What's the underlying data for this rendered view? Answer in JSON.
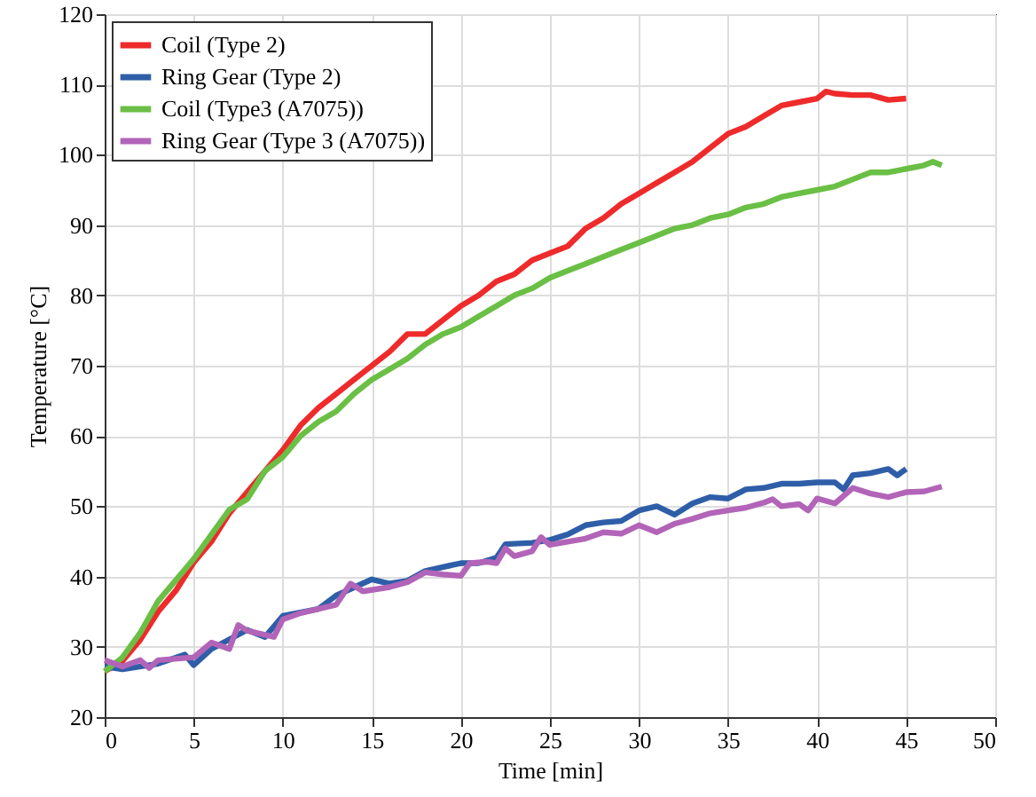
{
  "chart_data": {
    "type": "line",
    "xlabel": "Time [min]",
    "ylabel": "Temperature [°C]",
    "xlim": [
      0,
      50
    ],
    "xticks": [
      0,
      5,
      10,
      15,
      20,
      25,
      30,
      35,
      40,
      45,
      50
    ],
    "ylim": [
      20,
      120
    ],
    "yticks": [
      20,
      30,
      40,
      50,
      60,
      70,
      80,
      90,
      100,
      110,
      120
    ],
    "grid": true,
    "legend": "top left",
    "marker": "none",
    "line_style": "solid",
    "series": [
      {
        "name": "Coil (Type 2)",
        "color": "#ee2a2b",
        "x": [
          0,
          1,
          2,
          3,
          4,
          5,
          6,
          7,
          8,
          9,
          10,
          11,
          12,
          13,
          14,
          15,
          16,
          17,
          18,
          19,
          20,
          21,
          22,
          23,
          24,
          25,
          26,
          27,
          28,
          29,
          30,
          31,
          32,
          33,
          34,
          35,
          36,
          37,
          38,
          39,
          40,
          40.5,
          41,
          42,
          43,
          44,
          45
        ],
        "values": [
          26.5,
          28,
          31,
          35,
          38,
          42,
          45,
          49,
          52,
          55,
          58,
          61.5,
          64,
          66,
          68,
          70,
          72,
          74.5,
          74.5,
          76.5,
          78.5,
          80,
          82,
          83,
          85,
          86,
          87,
          89.5,
          91,
          93,
          94.5,
          96,
          97.5,
          99,
          101,
          103,
          104,
          105.5,
          107,
          107.5,
          108,
          109,
          108.7,
          108.5,
          108.5,
          107.8,
          108
        ]
      },
      {
        "name": "Ring Gear (Type 2)",
        "color": "#2f5ea8",
        "x": [
          0,
          1,
          3,
          4.5,
          5,
          6,
          8,
          9,
          10,
          12,
          13,
          15,
          16,
          17,
          18,
          20,
          21,
          22,
          22.5,
          24,
          25,
          26,
          27,
          28,
          29,
          30,
          31,
          32,
          33,
          34,
          35,
          36,
          37,
          38,
          39,
          40,
          41,
          41.5,
          42,
          43,
          44,
          44.5,
          45
        ],
        "values": [
          27.2,
          26.8,
          27.6,
          28.9,
          27.4,
          29.7,
          32.4,
          31.4,
          34.4,
          35.4,
          37.3,
          39.6,
          39,
          39.4,
          40.8,
          41.9,
          41.9,
          42.7,
          44.6,
          44.8,
          45.2,
          46,
          47.3,
          47.7,
          47.9,
          49.4,
          50,
          48.8,
          50.4,
          51.3,
          51.1,
          52.4,
          52.6,
          53.2,
          53.2,
          53.4,
          53.4,
          52.4,
          54.4,
          54.7,
          55.3,
          54.4,
          55.3
        ]
      },
      {
        "name": "Coil (Type3 (A7075))",
        "color": "#6abf45",
        "x": [
          0,
          1,
          2,
          3,
          4,
          5,
          6,
          7,
          8,
          9,
          10,
          11,
          12,
          13,
          14,
          15,
          16,
          17,
          18,
          19,
          20,
          21,
          22,
          23,
          24,
          25,
          26,
          27,
          28,
          29,
          30,
          31,
          32,
          33,
          34,
          35,
          36,
          37,
          38,
          39,
          40,
          41,
          42,
          43,
          44,
          45,
          46,
          46.5,
          47
        ],
        "values": [
          26.5,
          28.5,
          32,
          36.5,
          39.5,
          42.5,
          46,
          49.5,
          51,
          55,
          57,
          60,
          62,
          63.5,
          66,
          68,
          69.5,
          71,
          73,
          74.5,
          75.5,
          77,
          78.5,
          80,
          81,
          82.5,
          83.5,
          84.5,
          85.5,
          86.5,
          87.5,
          88.5,
          89.5,
          90,
          91,
          91.5,
          92.5,
          93,
          94,
          94.5,
          95,
          95.5,
          96.5,
          97.5,
          97.5,
          98,
          98.5,
          99,
          98.5
        ]
      },
      {
        "name": "Ring Gear (Type 3 (A7075))",
        "color": "#b264b8",
        "x": [
          0,
          1,
          2,
          2.5,
          3,
          5,
          6,
          7,
          7.5,
          8,
          9.5,
          10,
          11,
          12,
          13,
          13.8,
          14.5,
          16,
          17,
          18,
          19,
          20,
          20.5,
          21.5,
          22,
          22.5,
          23,
          24,
          24.5,
          25,
          27,
          28,
          29,
          30,
          31,
          32,
          33,
          34,
          35,
          36,
          37,
          37.5,
          38,
          39,
          39.5,
          40,
          41,
          42,
          43,
          44,
          45,
          46,
          47
        ],
        "values": [
          28.1,
          27.2,
          28.1,
          27,
          28.1,
          28.5,
          30.6,
          29.7,
          33.1,
          32.3,
          31.4,
          33.9,
          34.8,
          35.4,
          36,
          39,
          37.9,
          38.5,
          39.2,
          40.6,
          40.3,
          40.1,
          41.9,
          42.1,
          41.9,
          44,
          42.9,
          43.6,
          45.6,
          44.5,
          45.4,
          46.3,
          46.1,
          47.3,
          46.3,
          47.5,
          48.2,
          49,
          49.4,
          49.8,
          50.5,
          51,
          50,
          50.3,
          49.4,
          51.1,
          50.4,
          52.6,
          51.8,
          51.3,
          52,
          52.1,
          52.8
        ]
      }
    ]
  }
}
